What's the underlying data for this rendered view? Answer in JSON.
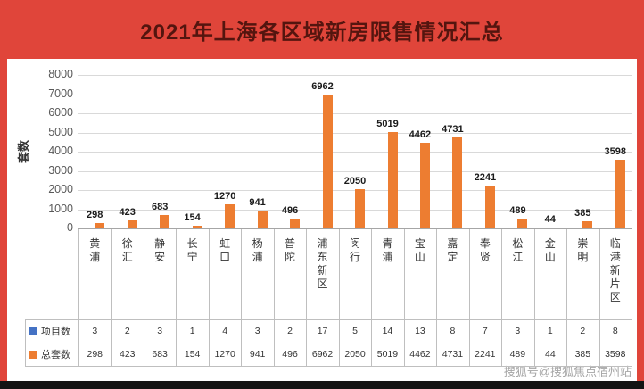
{
  "title": "2021年上海各区域新房限售情况汇总",
  "watermark": "搜狐号@搜狐焦点宿州站",
  "colors": {
    "banner_bg": "#e0453a",
    "bar_orange": "#ED7D31",
    "bar_blue": "#4472C4",
    "gridline": "#d9d9d9",
    "table_border": "#bfbfbf"
  },
  "chart_data": {
    "type": "bar",
    "title": "2021年上海各区域新房限售情况汇总",
    "ylabel": "套数",
    "ylim": [
      0,
      8000
    ],
    "ytick_step": 1000,
    "grid": true,
    "legend_position": "table-left",
    "categories": [
      "黄浦",
      "徐汇",
      "静安",
      "长宁",
      "虹口",
      "杨浦",
      "普陀",
      "浦东新区",
      "闵行",
      "青浦",
      "宝山",
      "嘉定",
      "奉贤",
      "松江",
      "金山",
      "崇明",
      "临港新片区"
    ],
    "series": [
      {
        "name": "项目数",
        "color": "#4472C4",
        "values": [
          3,
          2,
          3,
          1,
          4,
          3,
          2,
          17,
          5,
          14,
          13,
          8,
          7,
          3,
          1,
          2,
          8
        ]
      },
      {
        "name": "总套数",
        "color": "#ED7D31",
        "values": [
          298,
          423,
          683,
          154,
          1270,
          941,
          496,
          6962,
          2050,
          5019,
          4462,
          4731,
          2241,
          489,
          44,
          385,
          3598
        ]
      }
    ]
  }
}
